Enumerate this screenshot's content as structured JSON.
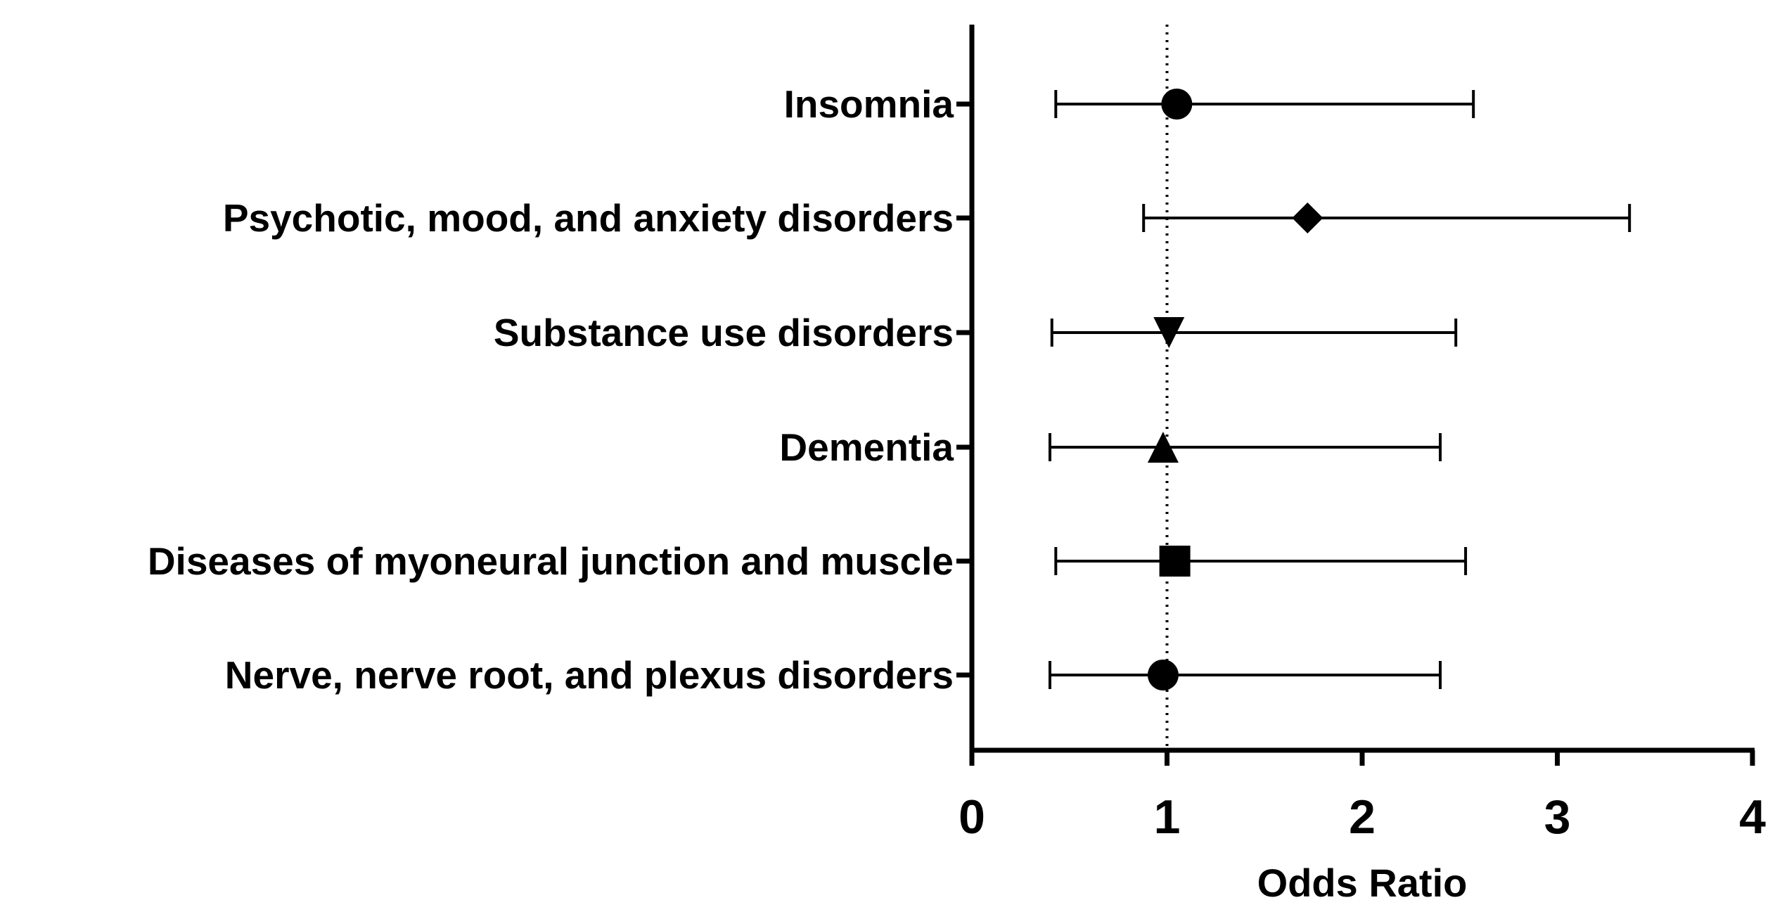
{
  "chart_data": {
    "type": "forest",
    "xlabel": "Odds Ratio",
    "ylabel": "",
    "title": "",
    "xlim": [
      0,
      4
    ],
    "xticks": [
      "0",
      "1",
      "2",
      "3",
      "4"
    ],
    "reference_line": 1,
    "grid": false,
    "rows": [
      {
        "label": "Insomnia",
        "or": 1.05,
        "lower": 0.43,
        "upper": 2.57,
        "marker": "circle"
      },
      {
        "label": "Psychotic, mood, and anxiety disorders",
        "or": 1.72,
        "lower": 0.88,
        "upper": 3.37,
        "marker": "diamond"
      },
      {
        "label": "Substance use disorders",
        "or": 1.01,
        "lower": 0.41,
        "upper": 2.48,
        "marker": "triangle-down"
      },
      {
        "label": "Dementia",
        "or": 0.98,
        "lower": 0.4,
        "upper": 2.4,
        "marker": "triangle-up"
      },
      {
        "label": "Diseases of myoneural junction and muscle",
        "or": 1.04,
        "lower": 0.43,
        "upper": 2.53,
        "marker": "square"
      },
      {
        "label": "Nerve, nerve root, and plexus disorders",
        "or": 0.98,
        "lower": 0.4,
        "upper": 2.4,
        "marker": "circle"
      }
    ],
    "color": "#000000"
  }
}
